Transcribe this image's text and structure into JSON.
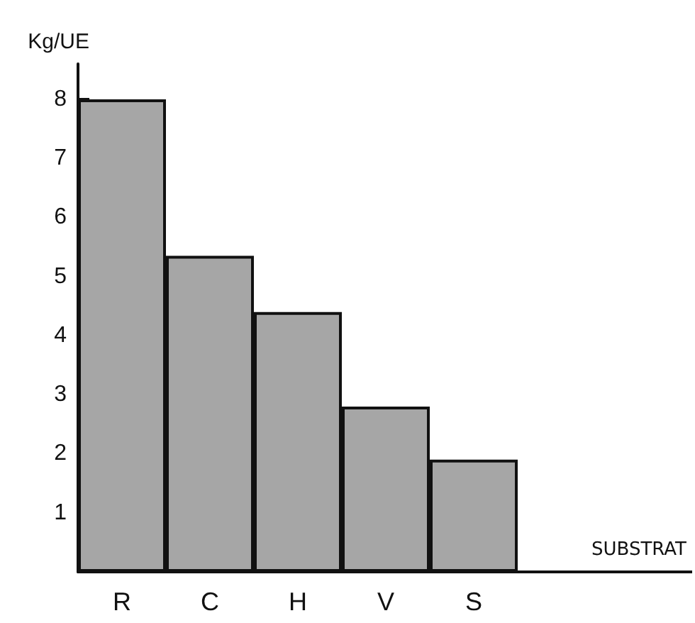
{
  "chart_data": {
    "type": "bar",
    "xlabel": "SUBSTRAT",
    "ylabel": "Kg/UE",
    "categories": [
      "R",
      "C",
      "H",
      "V",
      "S"
    ],
    "values": [
      8,
      5.35,
      4.4,
      2.8,
      1.9
    ],
    "color": "#a6a6a6",
    "ylim": [
      0,
      8.6
    ],
    "yticks": [
      1,
      2,
      3,
      4,
      5,
      6,
      7,
      8
    ],
    "grid": false
  }
}
